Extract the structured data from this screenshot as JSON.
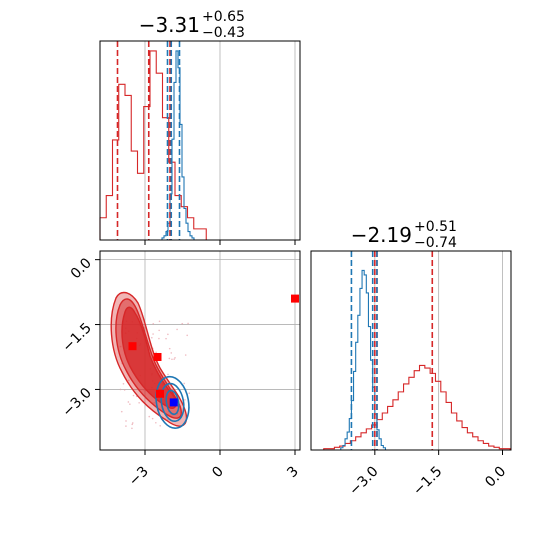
{
  "chart_data": {
    "type": "corner",
    "colors": {
      "red": "#d62728",
      "blue": "#1f77b4",
      "red_marker": "#ff0000",
      "blue_marker": "#0000ff"
    },
    "grid": true,
    "panels": [
      {
        "id": "top-left-hist",
        "type": "histogram",
        "title": {
          "main": "−3.31",
          "sup": "+0.65",
          "sub": "−0.43"
        },
        "x_range": [
          -4.8,
          3.2
        ],
        "x_ticks": [
          -3,
          0,
          3
        ],
        "x_tick_labels_shown": false,
        "red_quantiles": [
          -4.1,
          -2.85,
          -2.0
        ],
        "blue_quantiles": [
          -2.1,
          -1.95,
          -1.62
        ],
        "red_hist": {
          "x_start": -4.8,
          "bin_width": 0.25,
          "counts": [
            2,
            4,
            9,
            14,
            13,
            8,
            6,
            12,
            17,
            15,
            11,
            7,
            4,
            3,
            2,
            1,
            1,
            0
          ]
        },
        "blue_hist": {
          "x_start": -2.4,
          "bin_width": 0.08,
          "counts": [
            0,
            1,
            2,
            4,
            8,
            22,
            48,
            75,
            90,
            82,
            55,
            30,
            15,
            8,
            4,
            2,
            1,
            0
          ]
        }
      },
      {
        "id": "bottom-left-2d",
        "type": "contour",
        "x_range": [
          -4.8,
          3.2
        ],
        "y_range": [
          -4.4,
          0.2
        ],
        "x_ticks": [
          -3,
          0,
          3
        ],
        "x_tick_labels": [
          "−3",
          "0",
          "3"
        ],
        "y_ticks": [
          0.0,
          -1.5,
          -3.0
        ],
        "y_tick_labels": [
          "0.0",
          "−1.5",
          "−3.0"
        ],
        "red_markers": [
          [
            -3.5,
            -2.0
          ],
          [
            -2.5,
            -2.25
          ],
          [
            -2.4,
            -3.1
          ],
          [
            3.0,
            -0.9
          ]
        ],
        "blue_markers": [
          [
            -1.85,
            -3.3
          ]
        ]
      },
      {
        "id": "bottom-right-hist",
        "type": "histogram",
        "title": {
          "main": "−2.19",
          "sup": "+0.51",
          "sub": "−0.74"
        },
        "x_range": [
          -4.5,
          0.2
        ],
        "x_ticks": [
          -3.0,
          -1.5,
          0.0
        ],
        "x_tick_labels": [
          "−3.0",
          "−1.5",
          "0.0"
        ],
        "red_quantiles": [
          -3.0,
          -2.95,
          -1.65
        ],
        "blue_quantiles": [
          -3.55,
          -3.05,
          -2.95
        ],
        "red_hist": {
          "x_start": -4.2,
          "bin_width": 0.125,
          "counts": [
            1,
            1,
            2,
            3,
            5,
            7,
            10,
            13,
            16,
            19,
            23,
            28,
            33,
            38,
            44,
            50,
            55,
            60,
            64,
            62,
            58,
            52,
            44,
            36,
            28,
            22,
            17,
            13,
            10,
            7,
            5,
            3,
            2,
            1,
            1
          ]
        },
        "blue_hist": {
          "x_start": -3.8,
          "bin_width": 0.05,
          "counts": [
            1,
            2,
            5,
            8,
            14,
            22,
            35,
            48,
            60,
            72,
            80,
            78,
            70,
            55,
            40,
            28,
            16,
            9,
            5,
            2,
            1
          ]
        }
      }
    ]
  }
}
